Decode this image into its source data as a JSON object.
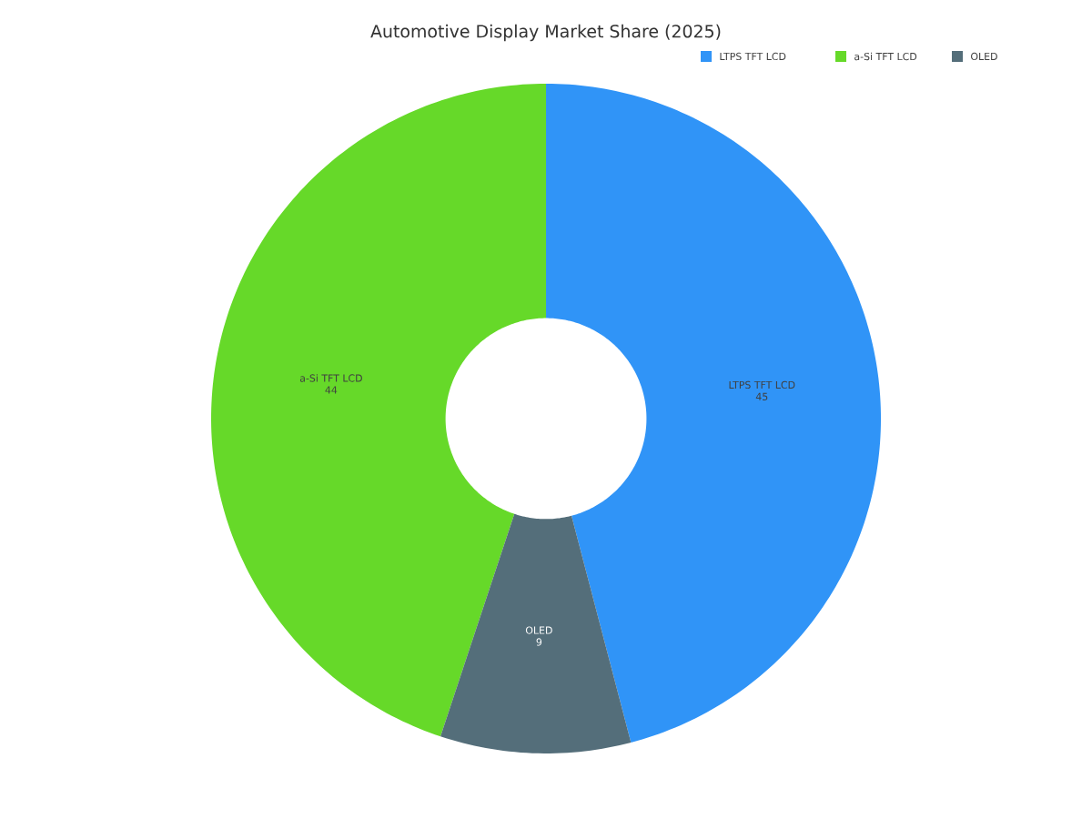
{
  "chart_data": {
    "type": "donut",
    "title": "Automotive Display Market Share (2025)",
    "categories": [
      "LTPS TFT LCD",
      "a-Si TFT LCD",
      "OLED"
    ],
    "values": [
      45,
      44,
      9
    ],
    "colors": [
      "#3094f7",
      "#66d929",
      "#546e7a"
    ],
    "data_labels": true,
    "legend": "top right"
  }
}
